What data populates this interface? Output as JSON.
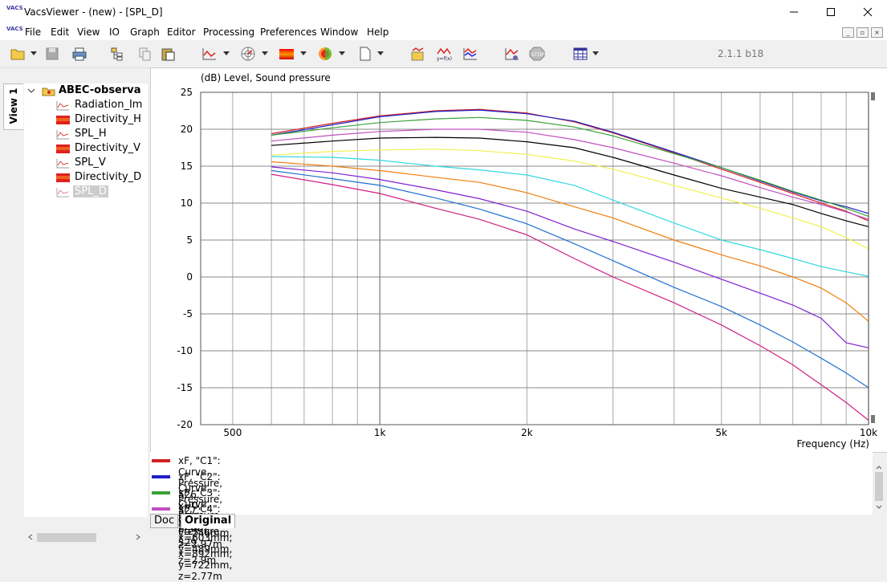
{
  "window": {
    "title": "VacsViewer - (new) - [SPL_D]",
    "app_icon_text": "VACS"
  },
  "menu": [
    "File",
    "Edit",
    "View",
    "IO",
    "Graph",
    "Editor",
    "Processing",
    "Preferences",
    "Window",
    "Help"
  ],
  "version": "2.1.1 b18",
  "side_tab": "View 1",
  "tree": {
    "root": "ABEC-observa",
    "items": [
      "Radiation_Im",
      "Directivity_H",
      "SPL_H",
      "Directivity_V",
      "SPL_V",
      "Directivity_D",
      "SPL_D"
    ]
  },
  "chart_data": {
    "type": "line",
    "title": "(dB)  Level, Sound pressure",
    "xlabel": "Frequency  (Hz)",
    "xscale": "log",
    "xlim": [
      430,
      10000
    ],
    "ylim": [
      -20,
      25
    ],
    "yticks": [
      25,
      20,
      15,
      10,
      5,
      0,
      -5,
      -10,
      -15,
      -20
    ],
    "xtick_labels": [
      {
        "v": 500,
        "t": "500"
      },
      {
        "v": 1000,
        "t": "1k"
      },
      {
        "v": 2000,
        "t": "2k"
      },
      {
        "v": 5000,
        "t": "5k"
      },
      {
        "v": 10000,
        "t": "10k"
      }
    ],
    "grid": true,
    "x": [
      600,
      800,
      1000,
      1300,
      1600,
      2000,
      2500,
      3000,
      4000,
      5000,
      6000,
      7000,
      8000,
      9000,
      10000
    ],
    "series": [
      {
        "color": "#d42020",
        "values": [
          19.4,
          20.8,
          21.8,
          22.5,
          22.7,
          22.2,
          21.0,
          19.5,
          16.8,
          14.6,
          12.8,
          11.3,
          10.0,
          8.9,
          7.6
        ]
      },
      {
        "color": "#2020c8",
        "values": [
          19.2,
          20.6,
          21.7,
          22.4,
          22.6,
          22.1,
          21.1,
          19.6,
          16.9,
          14.8,
          13.0,
          11.5,
          10.3,
          9.5,
          8.6
        ]
      },
      {
        "color": "#3aa03a",
        "values": [
          19.2,
          20.2,
          20.9,
          21.4,
          21.6,
          21.2,
          20.3,
          19.1,
          16.7,
          14.8,
          13.1,
          11.6,
          10.4,
          9.3,
          8.2
        ]
      },
      {
        "color": "#c050c0",
        "values": [
          18.4,
          19.2,
          19.7,
          20.0,
          20.0,
          19.6,
          18.6,
          17.5,
          15.4,
          13.7,
          12.1,
          10.8,
          9.8,
          8.8,
          7.8
        ]
      },
      {
        "color": "#000000",
        "values": [
          17.8,
          18.4,
          18.8,
          18.9,
          18.8,
          18.3,
          17.5,
          16.2,
          13.8,
          12.0,
          10.8,
          9.8,
          8.6,
          7.6,
          6.8
        ]
      },
      {
        "color": "#f0f050",
        "values": [
          16.5,
          17.0,
          17.2,
          17.3,
          17.1,
          16.6,
          15.7,
          14.6,
          12.4,
          10.7,
          9.3,
          8.0,
          6.8,
          5.3,
          3.8
        ]
      },
      {
        "color": "#30d8e0",
        "values": [
          16.3,
          16.2,
          15.8,
          15.0,
          14.5,
          13.8,
          12.4,
          10.4,
          7.3,
          5.0,
          3.7,
          2.5,
          1.4,
          0.7,
          0.1
        ]
      },
      {
        "color": "#f08010",
        "values": [
          15.6,
          15.0,
          14.4,
          13.5,
          12.8,
          11.4,
          9.5,
          8.0,
          5.0,
          3.0,
          1.5,
          0.0,
          -1.5,
          -3.5,
          -6.0
        ]
      },
      {
        "color": "#8020d0",
        "values": [
          14.9,
          14.1,
          13.2,
          11.8,
          10.6,
          8.9,
          6.5,
          4.8,
          2.0,
          -0.3,
          -2.2,
          -3.8,
          -5.6,
          -8.9,
          -9.6
        ]
      },
      {
        "color": "#2070d0",
        "values": [
          14.4,
          13.3,
          12.4,
          10.7,
          9.2,
          7.2,
          4.5,
          2.2,
          -1.4,
          -4.0,
          -6.5,
          -8.8,
          -11.0,
          -13.0,
          -15.0
        ]
      },
      {
        "color": "#d02080",
        "values": [
          13.9,
          12.5,
          11.3,
          9.3,
          7.8,
          5.7,
          2.5,
          0.0,
          -3.5,
          -6.5,
          -9.3,
          -11.9,
          -14.6,
          -17.0,
          -19.4
        ]
      }
    ]
  },
  "legend": [
    {
      "color": "#d42020",
      "text": "xF, \"C1\": Curve, Pressure, 526, x=0, y=0, z=3m"
    },
    {
      "color": "#2020c8",
      "text": "xF, \"C2\": Curve, Pressure, 527, x=304mm, y=246mm, z=2.97m"
    },
    {
      "color": "#3aa03a",
      "text": "xF, \"C3\": Curve, Pressure, 528, x=603mm, y=489mm, z=2.9m"
    },
    {
      "color": "#c050c0",
      "text": "xF, \"C4\": Curve, Pressure, 529, x=892mm, y=722mm, z=2.77m"
    }
  ],
  "tabs": [
    "Doc",
    "Original"
  ]
}
